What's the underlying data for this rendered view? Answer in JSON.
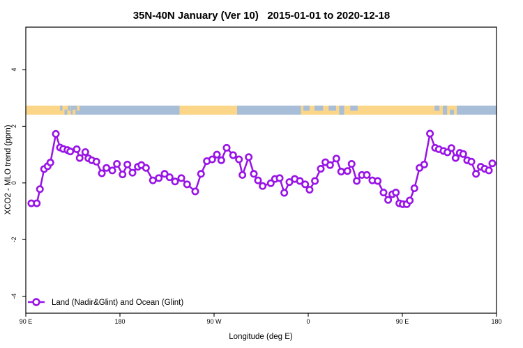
{
  "title": "35N-40N January (Ver 10)   2015-01-01 to 2020-12-18",
  "legend": {
    "label": "Land (Nadir&Glint) and Ocean (Glint)"
  },
  "colors": {
    "series_purple": "#9913E6",
    "land_tan": "#FBD688",
    "ocean_blue": "#A7BDD8",
    "frame_black": "#000000",
    "background": "#FFFFFF"
  },
  "chart_data": {
    "type": "line",
    "title": "35N-40N January (Ver 10)   2015-01-01 to 2020-12-18",
    "xlabel": "Longitude (deg E)",
    "ylabel": "XCO2 - MLO trend (ppm)",
    "xlim": [
      90,
      540
    ],
    "ylim": [
      -4.6,
      5.5
    ],
    "grid": false,
    "legend_position": "bottom-left",
    "x_ticks": [
      {
        "value": 90,
        "label": "90 E"
      },
      {
        "value": 180,
        "label": "180"
      },
      {
        "value": 270,
        "label": "90 W"
      },
      {
        "value": 360,
        "label": "0"
      },
      {
        "value": 450,
        "label": "90 E"
      },
      {
        "value": 540,
        "label": "180"
      }
    ],
    "y_ticks": [
      {
        "value": -4,
        "label": "-4"
      },
      {
        "value": -2,
        "label": "-2"
      },
      {
        "value": 0,
        "label": "0"
      },
      {
        "value": 2,
        "label": "2"
      },
      {
        "value": 4,
        "label": "4"
      }
    ],
    "series": [
      {
        "name": "Land (Nadir&Glint) and Ocean (Glint)",
        "color": "#9913E6",
        "marker": "open-circle",
        "x": [
          95.3,
          100.5,
          103.5,
          107.5,
          110.9,
          113.5,
          118.7,
          122.7,
          125.8,
          129.8,
          132.5,
          138.7,
          141.5,
          146.9,
          149.8,
          153.1,
          157.5,
          162.7,
          167.1,
          172.7,
          177.1,
          182.5,
          187.1,
          192.0,
          197.1,
          200.5,
          204.9,
          211.5,
          217.1,
          222.7,
          227.5,
          232.7,
          238.7,
          244.2,
          252.0,
          257.5,
          263.1,
          268.2,
          272.7,
          276.9,
          282.0,
          288.2,
          293.8,
          297.1,
          303.1,
          308.0,
          312.0,
          316.4,
          324.2,
          328.2,
          332.7,
          337.1,
          342.0,
          347.1,
          352.0,
          357.1,
          361.3,
          366.4,
          372.0,
          376.4,
          380.9,
          386.9,
          391.5,
          397.5,
          401.5,
          406.4,
          411.3,
          416.0,
          421.3,
          426.4,
          432.0,
          436.4,
          440.4,
          443.8,
          447.1,
          450.4,
          454.2,
          457.1,
          461.5,
          466.4,
          470.9,
          476.4,
          481.3,
          484.9,
          489.3,
          493.1,
          496.9,
          500.9,
          504.9,
          508.2,
          512.0,
          516.0,
          520.4,
          524.9,
          528.7,
          532.7,
          536.0
        ],
        "y": [
          -0.72,
          -0.72,
          -0.22,
          0.49,
          0.59,
          0.72,
          1.73,
          1.25,
          1.2,
          1.16,
          1.11,
          1.19,
          0.88,
          1.09,
          0.87,
          0.8,
          0.75,
          0.34,
          0.53,
          0.44,
          0.67,
          0.3,
          0.65,
          0.36,
          0.57,
          0.63,
          0.53,
          0.09,
          0.17,
          0.32,
          0.2,
          0.05,
          0.17,
          -0.05,
          -0.3,
          0.32,
          0.77,
          0.83,
          1.0,
          0.8,
          1.24,
          0.98,
          0.83,
          0.28,
          0.91,
          0.32,
          0.09,
          -0.11,
          -0.01,
          0.14,
          0.17,
          -0.35,
          0.03,
          0.14,
          0.07,
          -0.05,
          -0.24,
          0.07,
          0.5,
          0.73,
          0.63,
          0.86,
          0.4,
          0.42,
          0.67,
          0.07,
          0.28,
          0.28,
          0.09,
          0.07,
          -0.34,
          -0.6,
          -0.4,
          -0.34,
          -0.72,
          -0.75,
          -0.75,
          -0.62,
          -0.19,
          0.53,
          0.65,
          1.74,
          1.24,
          1.19,
          1.13,
          1.08,
          1.23,
          0.88,
          1.06,
          1.02,
          0.8,
          0.75,
          0.32,
          0.57,
          0.5,
          0.44,
          0.69
        ]
      }
    ],
    "map_strip": {
      "value_top": 2.73,
      "value_bottom": 2.41,
      "land_color": "#FBD688",
      "ocean_color": "#A7BDD8",
      "segments": [
        {
          "from": 90,
          "to": 121,
          "base": "land"
        },
        {
          "from": 121,
          "to": 133,
          "base": "land",
          "patches": [
            {
              "pos": 0.15,
              "w": 0.18,
              "align": "top"
            },
            {
              "pos": 0.5,
              "w": 0.22,
              "align": "bottom"
            },
            {
              "pos": 0.78,
              "w": 0.18,
              "align": "top"
            }
          ]
        },
        {
          "from": 133,
          "to": 145,
          "base": "ocean",
          "patches": [
            {
              "pos": 0.15,
              "w": 0.22,
              "align": "bottom"
            },
            {
              "pos": 0.5,
              "w": 0.2,
              "align": "top"
            }
          ]
        },
        {
          "from": 145,
          "to": 237,
          "base": "ocean"
        },
        {
          "from": 237,
          "to": 292,
          "base": "land"
        },
        {
          "from": 292,
          "to": 353,
          "base": "ocean"
        },
        {
          "from": 353,
          "to": 412,
          "base": "land",
          "patches": [
            {
              "pos": 0.04,
              "w": 0.1,
              "align": "top"
            },
            {
              "pos": 0.22,
              "w": 0.14,
              "align": "top"
            },
            {
              "pos": 0.45,
              "w": 0.12,
              "align": "top"
            },
            {
              "pos": 0.62,
              "w": 0.08,
              "align": "full"
            },
            {
              "pos": 0.8,
              "w": 0.12,
              "align": "top"
            }
          ]
        },
        {
          "from": 412,
          "to": 479,
          "base": "land"
        },
        {
          "from": 479,
          "to": 502,
          "base": "land",
          "patches": [
            {
              "pos": 0.08,
              "w": 0.2,
              "align": "top"
            },
            {
              "pos": 0.42,
              "w": 0.18,
              "align": "full"
            },
            {
              "pos": 0.72,
              "w": 0.16,
              "align": "bottom"
            }
          ]
        },
        {
          "from": 502,
          "to": 540,
          "base": "ocean"
        }
      ]
    }
  }
}
